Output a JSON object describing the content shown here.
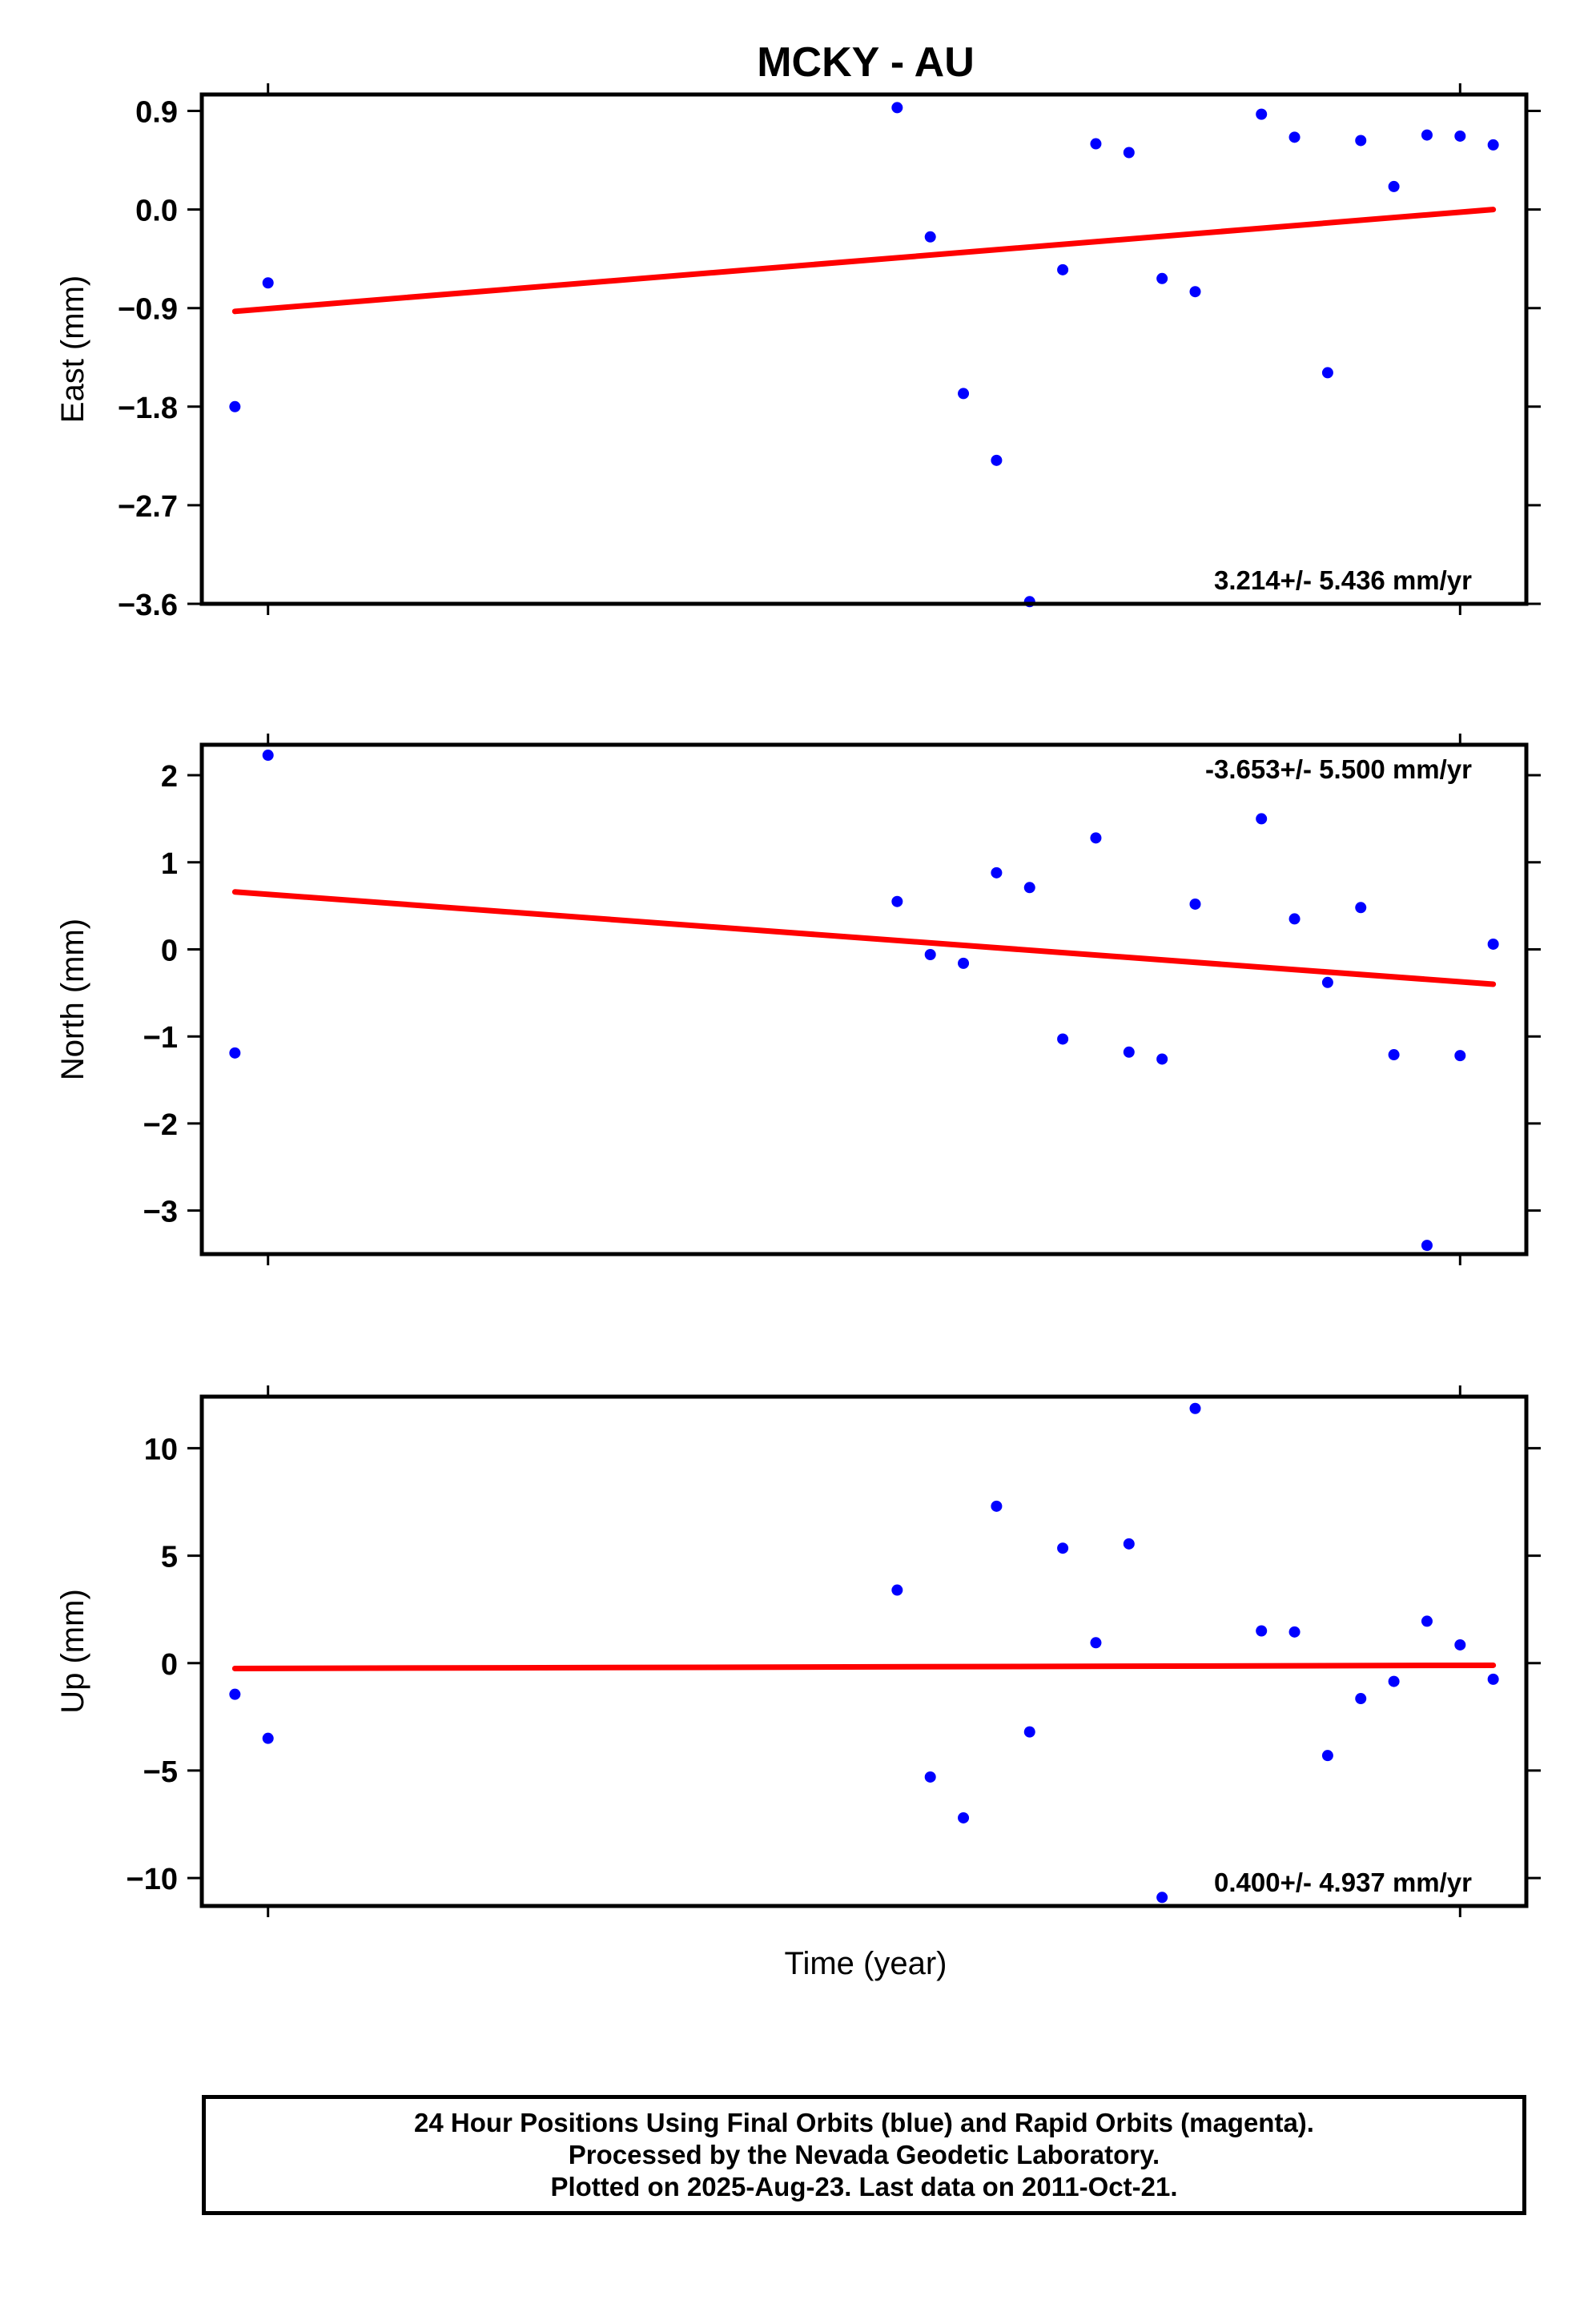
{
  "chart_data": {
    "title": "MCKY - AU",
    "xlabel": "Time (year)",
    "panels": [
      {
        "type": "scatter",
        "ylabel": "East (mm)",
        "ylim": [
          -3.6,
          1.05
        ],
        "yticks": [
          0.9,
          0.0,
          -0.9,
          -1.8,
          -2.7,
          -3.6
        ],
        "yticklabels": [
          "0.9",
          "0.0",
          "−0.9",
          "−1.8",
          "−2.7",
          "−3.6"
        ],
        "rate_label": "3.214+/- 5.436 mm/yr",
        "rate_position": "bottom-right",
        "x": [
          1,
          2,
          21,
          22,
          23,
          24,
          25,
          26,
          27,
          28,
          29,
          30,
          32,
          33,
          34,
          35,
          36,
          37,
          38,
          39
        ],
        "values": [
          -1.8,
          -0.67,
          0.93,
          -0.25,
          -1.68,
          -2.29,
          -3.58,
          -0.55,
          0.6,
          0.52,
          -0.63,
          -0.75,
          0.87,
          0.66,
          -1.49,
          0.63,
          0.21,
          0.68,
          0.67,
          0.59
        ],
        "trend": [
          -0.93,
          0.0
        ]
      },
      {
        "type": "scatter",
        "ylabel": "North (mm)",
        "ylim": [
          -3.5,
          2.35
        ],
        "yticks": [
          2,
          1,
          0,
          -1,
          -2,
          -3
        ],
        "yticklabels": [
          "2",
          "1",
          "0",
          "−1",
          "−2",
          "−3"
        ],
        "rate_label": "-3.653+/- 5.500 mm/yr",
        "rate_position": "top-right",
        "x": [
          1,
          2,
          21,
          22,
          23,
          24,
          25,
          26,
          27,
          28,
          29,
          30,
          32,
          33,
          34,
          35,
          36,
          37,
          38,
          39
        ],
        "values": [
          -1.19,
          2.23,
          0.55,
          -0.06,
          -0.16,
          0.88,
          0.71,
          -1.03,
          1.28,
          -1.18,
          -1.26,
          0.52,
          1.5,
          0.35,
          -0.38,
          0.48,
          -1.21,
          -3.4,
          -1.22,
          0.06
        ],
        "trend": [
          0.66,
          -0.4
        ]
      },
      {
        "type": "scatter",
        "ylabel": "Up (mm)",
        "ylim": [
          -11.3,
          12.4
        ],
        "yticks": [
          10,
          5,
          0,
          -5,
          -10
        ],
        "yticklabels": [
          "10",
          "5",
          "0",
          "−5",
          "−10"
        ],
        "rate_label": "0.400+/- 4.937 mm/yr",
        "rate_position": "bottom-right",
        "x": [
          1,
          2,
          21,
          22,
          23,
          24,
          25,
          26,
          27,
          28,
          29,
          30,
          32,
          33,
          34,
          35,
          36,
          37,
          38,
          39
        ],
        "values": [
          -1.45,
          -3.5,
          3.4,
          -5.3,
          -7.2,
          7.3,
          -3.2,
          5.35,
          0.95,
          5.55,
          -10.9,
          11.85,
          1.5,
          1.45,
          -4.3,
          -1.65,
          -0.85,
          1.95,
          0.85,
          -0.75
        ],
        "trend": [
          -0.25,
          -0.1
        ]
      }
    ],
    "colors": {
      "points": "#0000ff",
      "trend": "#ff0000",
      "axes": "#000000"
    }
  },
  "footer": {
    "line1": "24 Hour Positions Using Final Orbits (blue) and Rapid Orbits (magenta).",
    "line2": "Processed by the Nevada Geodetic Laboratory.",
    "line3": "Plotted on 2025-Aug-23. Last data on 2011-Oct-21."
  }
}
